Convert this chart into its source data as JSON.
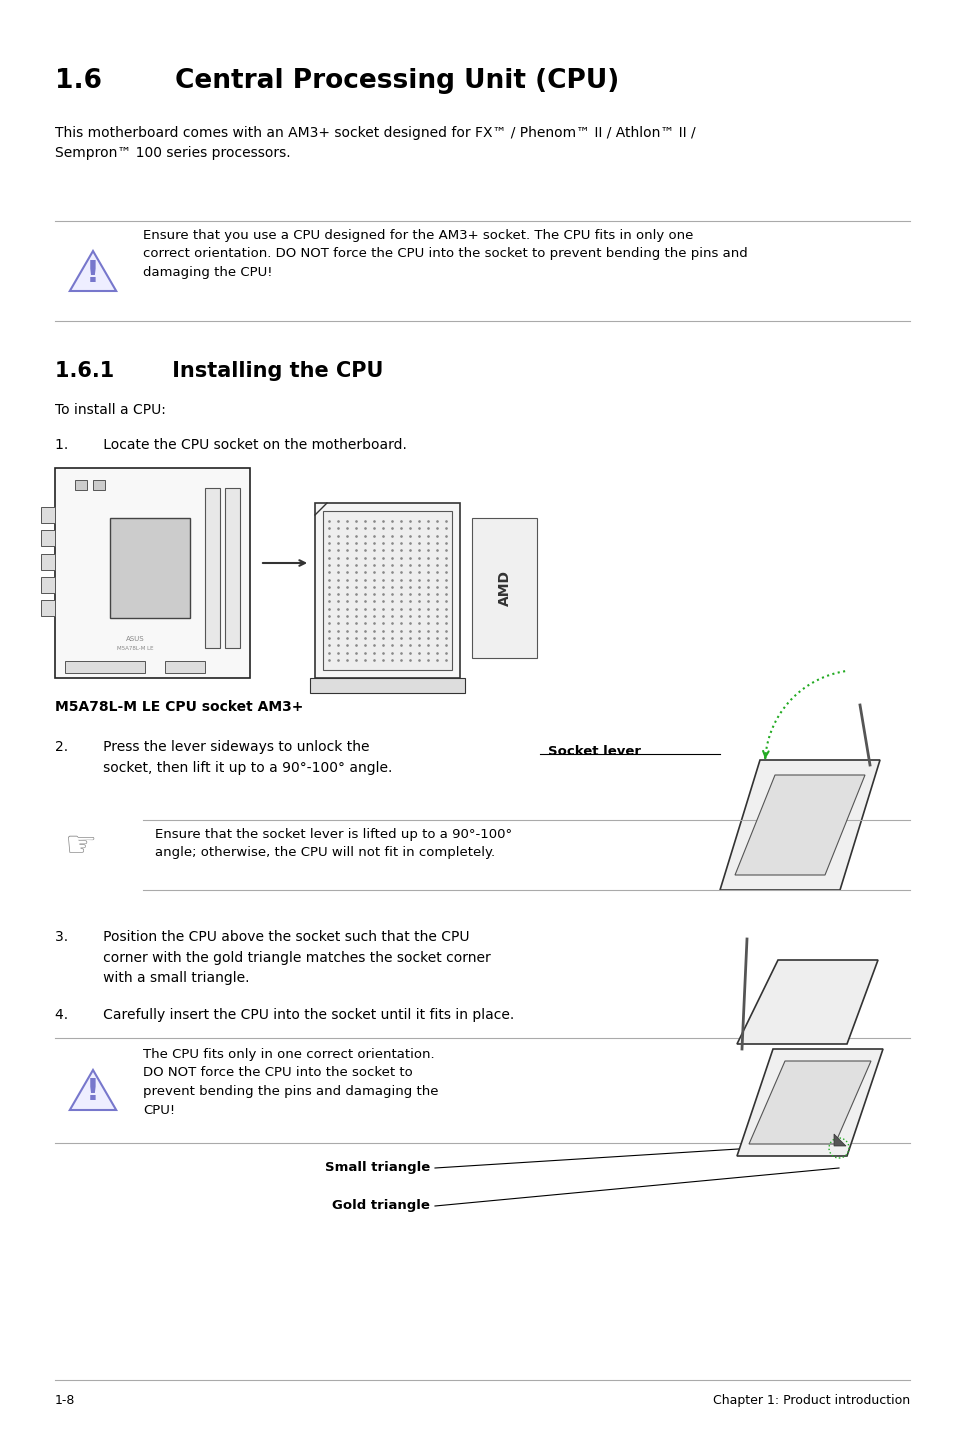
{
  "bg_color": "#ffffff",
  "lm": 0.058,
  "rm": 0.958,
  "tc": "#000000",
  "lc": "#aaaaaa",
  "wic": "#7777cc",
  "gc": "#22aa22",
  "title": "1.6        Central Processing Unit (CPU)",
  "title_fs": 19,
  "body1": "This motherboard comes with an AM3+ socket designed for FX™ / Phenom™ II / Athlon™ II /\nSempron™ 100 series processors.",
  "body1_fs": 10,
  "warn1": "Ensure that you use a CPU designed for the AM3+ socket. The CPU fits in only one\ncorrect orientation. DO NOT force the CPU into the socket to prevent bending the pins and\ndamaging the CPU!",
  "warn1_fs": 9.5,
  "sec161": "1.6.1        Installing the CPU",
  "sec161_fs": 15,
  "to_install": "To install a CPU:",
  "step1": "1.        Locate the CPU socket on the motherboard.",
  "mb_label": "M5A78L-M LE CPU socket AM3+",
  "step2": "2.        Press the lever sideways to unlock the\n           socket, then lift it up to a 90°-100° angle.",
  "sock_lev": "Socket lever",
  "warn2": "Ensure that the socket lever is lifted up to a 90°-100°\nangle; otherwise, the CPU will not fit in completely.",
  "warn2_fs": 9.5,
  "step3": "3.        Position the CPU above the socket such that the CPU\n           corner with the gold triangle matches the socket corner\n           with a small triangle.",
  "step4": "4.        Carefully insert the CPU into the socket until it fits in place.",
  "warn3": "The CPU fits only in one correct orientation.\nDO NOT force the CPU into the socket to\nprevent bending the pins and damaging the\nCPU!",
  "warn3_fs": 9.5,
  "sm_tri": "Small triangle",
  "gd_tri": "Gold triangle",
  "footer_l": "1-8",
  "footer_r": "Chapter 1: Product introduction"
}
